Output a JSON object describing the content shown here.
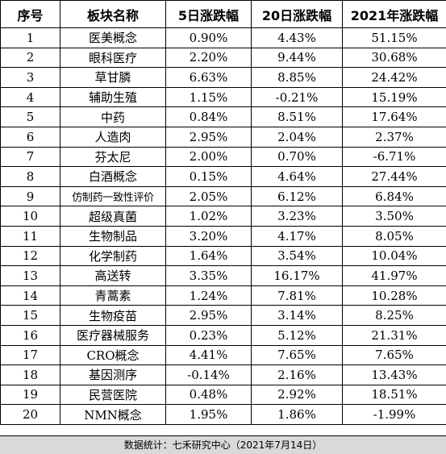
{
  "table": {
    "headers": [
      "序号",
      "板块名称",
      "5日涨跌幅",
      "20日涨跌幅",
      "2021年涨跌幅"
    ],
    "rows": [
      [
        "1",
        "医美概念",
        "0.90%",
        "4.43%",
        "51.15%"
      ],
      [
        "2",
        "眼科医疗",
        "2.20%",
        "9.44%",
        "30.68%"
      ],
      [
        "3",
        "草甘膦",
        "6.63%",
        "8.85%",
        "24.42%"
      ],
      [
        "4",
        "辅助生殖",
        "1.15%",
        "-0.21%",
        "15.19%"
      ],
      [
        "5",
        "中药",
        "0.84%",
        "8.51%",
        "17.64%"
      ],
      [
        "6",
        "人造肉",
        "2.95%",
        "2.04%",
        "2.37%"
      ],
      [
        "7",
        "芬太尼",
        "2.00%",
        "0.70%",
        "-6.71%"
      ],
      [
        "8",
        "白酒概念",
        "0.15%",
        "4.64%",
        "27.44%"
      ],
      [
        "9",
        "仿制药一致性评价",
        "2.05%",
        "6.12%",
        "6.84%"
      ],
      [
        "10",
        "超级真菌",
        "1.02%",
        "3.23%",
        "3.50%"
      ],
      [
        "11",
        "生物制品",
        "3.20%",
        "4.17%",
        "8.05%"
      ],
      [
        "12",
        "化学制药",
        "1.64%",
        "3.54%",
        "10.04%"
      ],
      [
        "13",
        "高送转",
        "3.35%",
        "16.17%",
        "41.97%"
      ],
      [
        "14",
        "青蒿素",
        "1.24%",
        "7.81%",
        "10.28%"
      ],
      [
        "15",
        "生物疫苗",
        "2.95%",
        "3.14%",
        "8.25%"
      ],
      [
        "16",
        "医疗器械服务",
        "0.23%",
        "5.12%",
        "21.31%"
      ],
      [
        "17",
        "CRO概念",
        "4.41%",
        "7.65%",
        "7.65%"
      ],
      [
        "18",
        "基因测序",
        "-0.14%",
        "2.16%",
        "13.43%"
      ],
      [
        "19",
        "民营医院",
        "0.48%",
        "2.92%",
        "18.51%"
      ],
      [
        "20",
        "NMN概念",
        "1.95%",
        "1.86%",
        "-1.99%"
      ]
    ]
  },
  "footer": {
    "text": "数据统计：七禾研究中心（2021年7月14日）"
  }
}
